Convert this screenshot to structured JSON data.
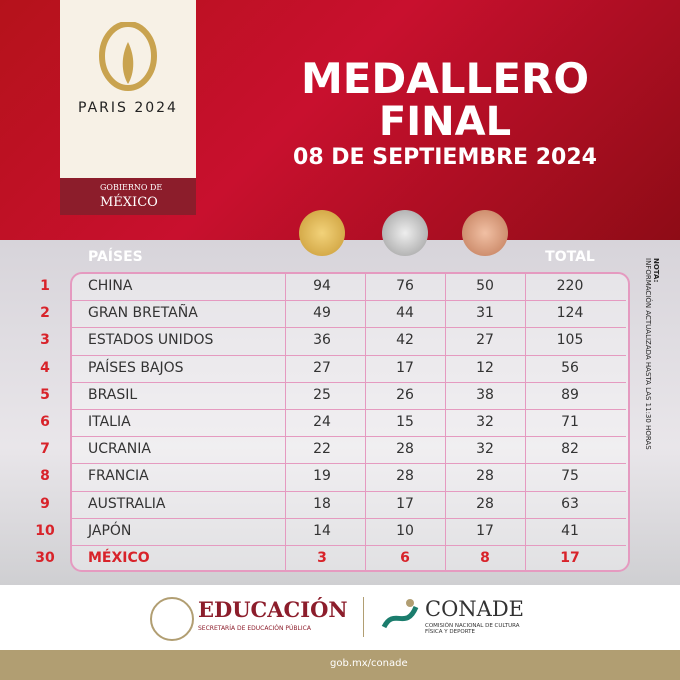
{
  "header": {
    "logo": "PARIS 2024",
    "government": "GOBIERNO DE",
    "country": "MÉXICO",
    "title": "MEDALLERO",
    "subtitle": "FINAL",
    "date": "08 DE SEPTIEMBRE 2024"
  },
  "table": {
    "header_country": "PAÍSES",
    "header_total": "TOTAL",
    "rows": [
      [
        1,
        "CHINA",
        94,
        76,
        50,
        220
      ],
      [
        2,
        "GRAN BRETAÑA",
        49,
        44,
        31,
        124
      ],
      [
        3,
        "ESTADOS UNIDOS",
        36,
        42,
        27,
        105
      ],
      [
        4,
        "PAÍSES BAJOS",
        27,
        17,
        12,
        56
      ],
      [
        5,
        "BRASIL",
        25,
        26,
        38,
        89
      ],
      [
        6,
        "ITALIA",
        24,
        15,
        32,
        71
      ],
      [
        7,
        "UCRANIA",
        22,
        28,
        32,
        82
      ],
      [
        8,
        "FRANCIA",
        19,
        28,
        28,
        75
      ],
      [
        9,
        "AUSTRALIA",
        18,
        17,
        28,
        63
      ],
      [
        10,
        "JAPÓN",
        14,
        10,
        17,
        41
      ],
      [
        30,
        "MÉXICO",
        3,
        6,
        8,
        17
      ]
    ]
  },
  "note": {
    "label": "NOTA:",
    "text": "INFORMACIÓN ACTUALIZADA HASTA LAS 11:30 HORAS"
  },
  "footer": {
    "education": "EDUCACIÓN",
    "education_sub": "SECRETARÍA DE EDUCACIÓN PÚBLICA",
    "conade": "CONADE",
    "conade_sub": "COMISIÓN NACIONAL DE CULTURA FÍSICA Y DEPORTE",
    "website": "gob.mx/conade"
  }
}
